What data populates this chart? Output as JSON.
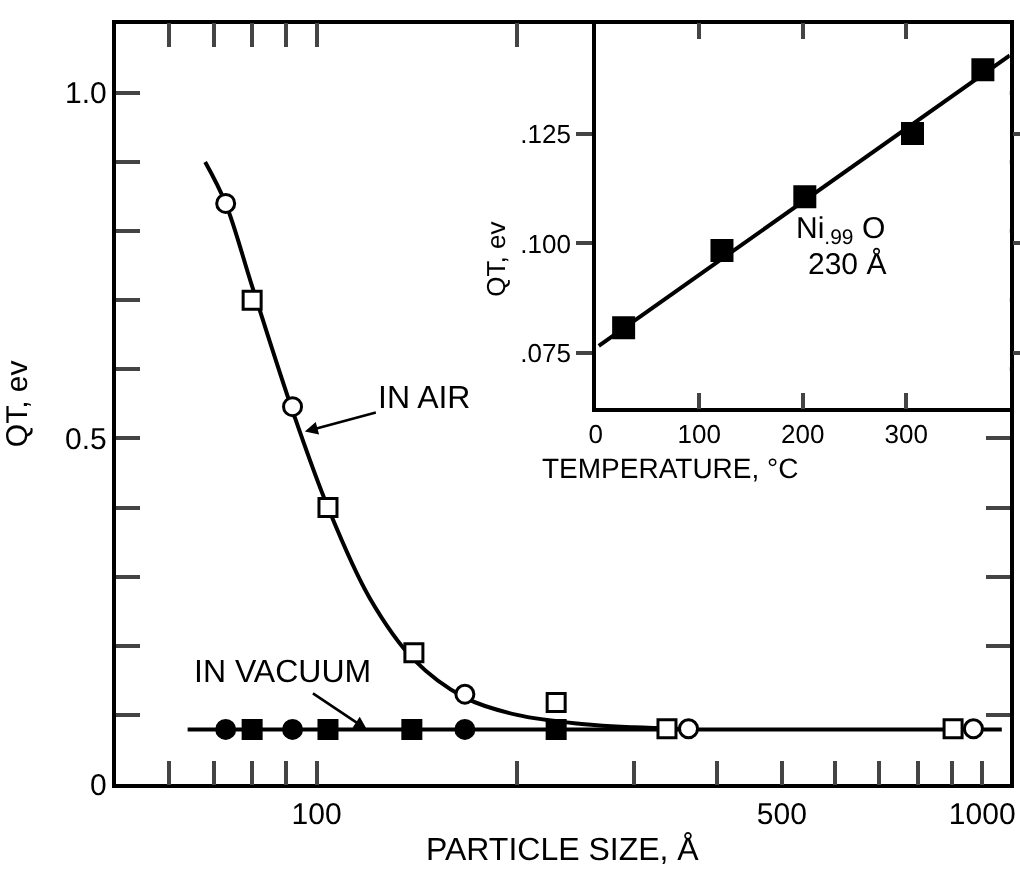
{
  "chart_data": [
    {
      "type": "scatter",
      "xlabel": "PARTICLE SIZE, Å",
      "ylabel": "QT, ev",
      "log": "x",
      "xlim": [
        50,
        1100
      ],
      "xticks": [
        {
          "value": 60,
          "label": null
        },
        {
          "value": 70,
          "label": null
        },
        {
          "value": 80,
          "label": null
        },
        {
          "value": 90,
          "label": null
        },
        100,
        {
          "value": 200,
          "label": null
        },
        {
          "value": 300,
          "label": null
        },
        {
          "value": 400,
          "label": null
        },
        500,
        {
          "value": 600,
          "label": null
        },
        {
          "value": 700,
          "label": null
        },
        {
          "value": 800,
          "label": null
        },
        {
          "value": 900,
          "label": null
        },
        1000
      ],
      "ylim": [
        0,
        1.1
      ],
      "yticks": [
        0,
        {
          "value": 0.1,
          "label": null
        },
        {
          "value": 0.2,
          "label": null
        },
        {
          "value": 0.3,
          "label": null
        },
        {
          "value": 0.4,
          "label": null
        },
        0.5,
        {
          "value": 0.6,
          "label": null
        },
        {
          "value": 0.7,
          "label": null
        },
        {
          "value": 0.8,
          "label": null
        },
        {
          "value": 0.9,
          "label": null
        },
        {
          "value": 1,
          "label": "1.0"
        }
      ],
      "series": [
        {
          "type": "line",
          "color": "#000000",
          "line_style": "solid",
          "marker": "none",
          "x": [
            68,
            73,
            80,
            92,
            104,
            120,
            140,
            167,
            200,
            250,
            300,
            350
          ],
          "values": [
            0.9,
            0.84,
            0.72,
            0.54,
            0.4,
            0.27,
            0.18,
            0.125,
            0.1,
            0.087,
            0.082,
            0.08
          ]
        },
        {
          "type": "line",
          "color": "#000000",
          "line_style": "solid",
          "marker": "none",
          "x": [
            64,
            1070
          ],
          "values": [
            0.079,
            0.079
          ]
        },
        {
          "color": "#ffffff",
          "marker": "circle",
          "x": [
            73,
            92,
            167,
            362,
            970
          ],
          "values": [
            0.84,
            0.546,
            0.13,
            0.08,
            0.08
          ]
        },
        {
          "color": "#ffffff",
          "marker": "square",
          "x": [
            80,
            104,
            140,
            229,
            336,
            904
          ],
          "values": [
            0.7,
            0.4,
            0.19,
            0.118,
            0.08,
            0.08
          ]
        },
        {
          "color": "#000000",
          "marker": "circle",
          "x": [
            73,
            92,
            167
          ],
          "values": [
            0.079,
            0.079,
            0.079
          ]
        },
        {
          "color": "#000000",
          "marker": "square",
          "x": [
            80,
            104,
            139,
            229
          ],
          "values": [
            0.079,
            0.079,
            0.079,
            0.079
          ]
        }
      ],
      "annotations": [
        {
          "text": "IN AIR",
          "x": 96,
          "y": 0.51
        },
        {
          "text": "IN VACUUM",
          "x": 119,
          "y": 0.079
        }
      ]
    },
    {
      "type": "scatter",
      "xlabel": "TEMPERATURE, °C",
      "ylabel": "QT, ev",
      "xlim": [
        0,
        400
      ],
      "xticks": [
        0,
        100,
        200,
        300
      ],
      "ylim": [
        0.0625,
        0.15
      ],
      "yticks": [
        {
          "value": 0.075,
          "label": ".075"
        },
        {
          "value": 0.1,
          "label": ".100"
        },
        {
          "value": 0.125,
          "label": ".125"
        }
      ],
      "series": [
        {
          "type": "line",
          "color": "#000000",
          "line_style": "solid",
          "marker": "none",
          "x": [
            3,
            400
          ],
          "values": [
            0.0767,
            0.1428
          ]
        },
        {
          "color": "#000000",
          "marker": "square",
          "x": [
            27,
            122,
            202,
            306,
            374
          ],
          "values": [
            0.0808,
            0.0984,
            0.1106,
            0.125,
            0.1395
          ]
        }
      ],
      "annotations": [
        "Ni$_{.99}$ O",
        "230 Å"
      ]
    }
  ]
}
